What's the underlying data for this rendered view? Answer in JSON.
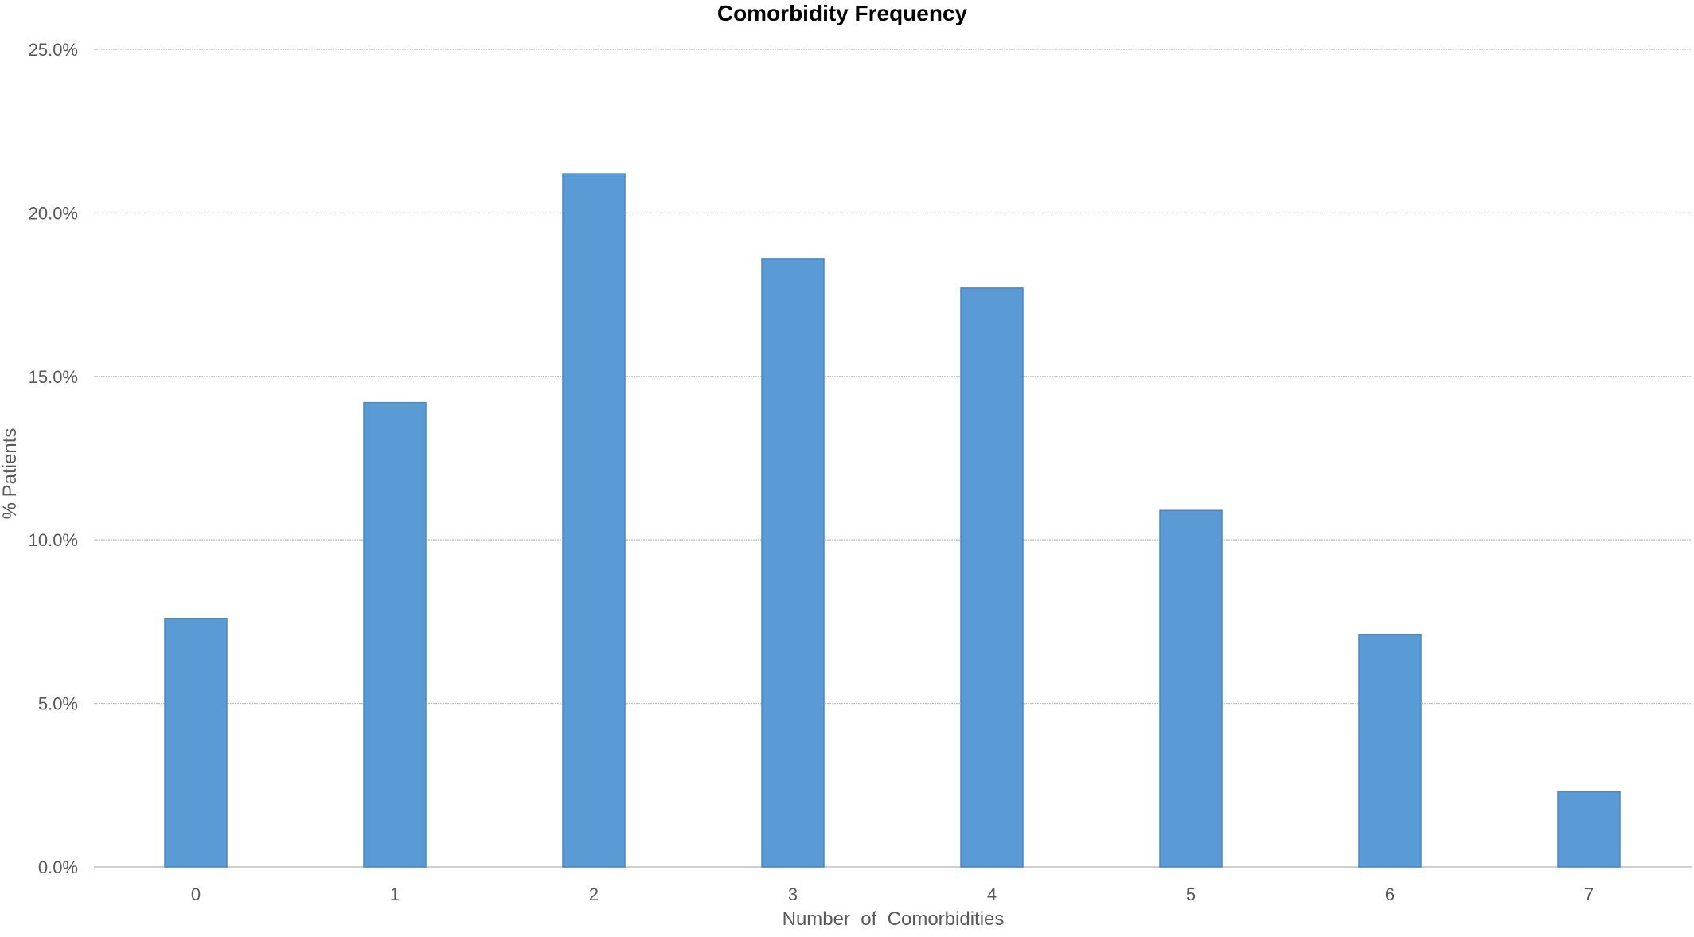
{
  "chart_data": {
    "type": "bar",
    "title": "Comorbidity Frequency",
    "xlabel": "Number  of  Comorbidities",
    "ylabel": "% Patients",
    "categories": [
      "0",
      "1",
      "2",
      "3",
      "4",
      "5",
      "6",
      "7"
    ],
    "values": [
      7.6,
      14.2,
      21.2,
      18.6,
      17.7,
      10.9,
      7.1,
      2.3
    ],
    "ylim": [
      0,
      25
    ],
    "yticks": [
      0,
      5,
      10,
      15,
      20,
      25
    ],
    "ytick_labels": [
      "0.0%",
      "5.0%",
      "10.0%",
      "15.0%",
      "20.0%",
      "25.0%"
    ],
    "bar_color": "#5b9bd5",
    "grid": true,
    "legend": "none"
  }
}
